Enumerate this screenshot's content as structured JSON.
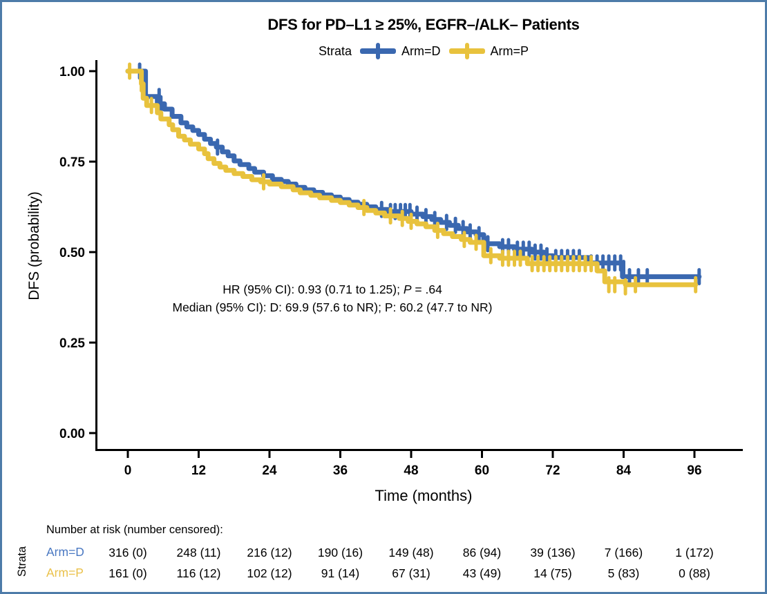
{
  "title": "DFS for PD–L1 ≥ 25%, EGFR–/ALK– Patients",
  "legend": {
    "label": "Strata",
    "items": [
      {
        "label": "Arm=D",
        "color": "#3a68b0"
      },
      {
        "label": "Arm=P",
        "color": "#e8c23d"
      }
    ]
  },
  "annotation": {
    "hr_prefix": "HR (95% CI): 0.93 (0.71 to 1.25); ",
    "hr_p": "P",
    "hr_suffix": " = .64",
    "median_line": "Median (95% CI): D: 69.9 (57.6 to NR); P: 60.2 (47.7 to NR)"
  },
  "chart_data": {
    "type": "line",
    "subtype": "kaplan-meier-step",
    "title": "DFS for PD–L1 ≥ 25%, EGFR–/ALK– Patients",
    "xlabel": "Time (months)",
    "ylabel": "DFS (probability)",
    "xlim": [
      0,
      102
    ],
    "ylim": [
      0,
      1.0
    ],
    "x_ticks": [
      "0",
      "12",
      "24",
      "36",
      "48",
      "60",
      "72",
      "84",
      "96"
    ],
    "x_tick_values": [
      0,
      12,
      24,
      36,
      48,
      60,
      72,
      84,
      96
    ],
    "y_ticks": [
      "1.00",
      "0.75",
      "0.50",
      "0.25",
      "0.00"
    ],
    "y_tick_values": [
      1.0,
      0.75,
      0.5,
      0.25,
      0.0
    ],
    "grid": false,
    "legend_position": "top",
    "series": [
      {
        "name": "Arm=D",
        "color": "#3a68b0",
        "steps": [
          [
            0,
            1
          ],
          [
            3,
            1
          ],
          [
            3,
            0.93
          ],
          [
            5,
            0.93
          ],
          [
            5,
            0.91
          ],
          [
            6.2,
            0.91
          ],
          [
            6.2,
            0.895
          ],
          [
            7.5,
            0.895
          ],
          [
            7.5,
            0.875
          ],
          [
            9,
            0.875
          ],
          [
            9,
            0.857
          ],
          [
            10,
            0.857
          ],
          [
            10,
            0.846
          ],
          [
            11,
            0.846
          ],
          [
            11,
            0.836
          ],
          [
            12,
            0.836
          ],
          [
            12,
            0.825
          ],
          [
            13,
            0.825
          ],
          [
            13,
            0.812
          ],
          [
            14,
            0.812
          ],
          [
            14,
            0.8
          ],
          [
            15,
            0.8
          ],
          [
            15,
            0.79
          ],
          [
            16,
            0.79
          ],
          [
            16,
            0.777
          ],
          [
            17,
            0.777
          ],
          [
            17,
            0.766
          ],
          [
            18,
            0.766
          ],
          [
            18,
            0.752
          ],
          [
            19,
            0.752
          ],
          [
            19,
            0.742
          ],
          [
            20.5,
            0.742
          ],
          [
            20.5,
            0.731
          ],
          [
            21.5,
            0.731
          ],
          [
            21.5,
            0.721
          ],
          [
            23,
            0.721
          ],
          [
            23,
            0.711
          ],
          [
            24.5,
            0.711
          ],
          [
            24.5,
            0.701
          ],
          [
            26,
            0.701
          ],
          [
            26,
            0.695
          ],
          [
            27.2,
            0.695
          ],
          [
            27.2,
            0.688
          ],
          [
            28.5,
            0.688
          ],
          [
            28.5,
            0.679
          ],
          [
            30,
            0.679
          ],
          [
            30,
            0.672
          ],
          [
            31.5,
            0.672
          ],
          [
            31.5,
            0.665
          ],
          [
            33,
            0.665
          ],
          [
            33,
            0.658
          ],
          [
            34.5,
            0.658
          ],
          [
            34.5,
            0.652
          ],
          [
            36,
            0.652
          ],
          [
            36,
            0.645
          ],
          [
            37.5,
            0.645
          ],
          [
            37.5,
            0.638
          ],
          [
            39,
            0.638
          ],
          [
            39,
            0.632
          ],
          [
            40.5,
            0.632
          ],
          [
            40.5,
            0.625
          ],
          [
            42,
            0.625
          ],
          [
            42,
            0.618
          ],
          [
            44,
            0.618
          ],
          [
            44,
            0.612
          ],
          [
            48,
            0.612
          ],
          [
            48,
            0.605
          ],
          [
            50,
            0.605
          ],
          [
            50,
            0.598
          ],
          [
            51.5,
            0.598
          ],
          [
            51.5,
            0.59
          ],
          [
            53,
            0.59
          ],
          [
            53,
            0.582
          ],
          [
            54.5,
            0.582
          ],
          [
            54.5,
            0.574
          ],
          [
            56,
            0.574
          ],
          [
            56,
            0.565
          ],
          [
            57.5,
            0.565
          ],
          [
            57.5,
            0.556
          ],
          [
            59,
            0.556
          ],
          [
            59,
            0.548
          ],
          [
            60.3,
            0.548
          ],
          [
            60.3,
            0.523
          ],
          [
            63,
            0.523
          ],
          [
            63,
            0.515
          ],
          [
            65.5,
            0.515
          ],
          [
            65.5,
            0.508
          ],
          [
            68.5,
            0.508
          ],
          [
            68.5,
            0.5
          ],
          [
            70.5,
            0.5
          ],
          [
            70.5,
            0.49
          ],
          [
            72,
            0.49
          ],
          [
            72,
            0.485
          ],
          [
            78,
            0.485
          ],
          [
            78,
            0.47
          ],
          [
            83.8,
            0.47
          ],
          [
            83.8,
            0.432
          ],
          [
            96.8,
            0.432
          ]
        ],
        "censors": [
          [
            2,
            1
          ],
          [
            5.3,
            0.93
          ],
          [
            5.6,
            0.91
          ],
          [
            15.2,
            0.79
          ],
          [
            43,
            0.618
          ],
          [
            44.5,
            0.612
          ],
          [
            45.3,
            0.612
          ],
          [
            46.2,
            0.612
          ],
          [
            47,
            0.612
          ],
          [
            47.8,
            0.612
          ],
          [
            49,
            0.605
          ],
          [
            50.5,
            0.598
          ],
          [
            52,
            0.59
          ],
          [
            54,
            0.582
          ],
          [
            55.5,
            0.574
          ],
          [
            56.8,
            0.565
          ],
          [
            58,
            0.556
          ],
          [
            59.5,
            0.548
          ],
          [
            61,
            0.523
          ],
          [
            63.5,
            0.515
          ],
          [
            64.5,
            0.515
          ],
          [
            66,
            0.508
          ],
          [
            67,
            0.508
          ],
          [
            68,
            0.508
          ],
          [
            69,
            0.5
          ],
          [
            70,
            0.5
          ],
          [
            71,
            0.49
          ],
          [
            72.5,
            0.485
          ],
          [
            73.5,
            0.485
          ],
          [
            74.5,
            0.485
          ],
          [
            75.5,
            0.485
          ],
          [
            76.5,
            0.485
          ],
          [
            78.5,
            0.47
          ],
          [
            79.5,
            0.47
          ],
          [
            80.5,
            0.47
          ],
          [
            81.5,
            0.47
          ],
          [
            82.5,
            0.47
          ],
          [
            83.5,
            0.47
          ],
          [
            84,
            0.455
          ],
          [
            85,
            0.432
          ],
          [
            86.5,
            0.432
          ],
          [
            88,
            0.432
          ],
          [
            96.8,
            0.432
          ]
        ]
      },
      {
        "name": "Arm=P",
        "color": "#e8c23d",
        "steps": [
          [
            0,
            1
          ],
          [
            2.3,
            1
          ],
          [
            2.3,
            0.965
          ],
          [
            2.6,
            0.965
          ],
          [
            2.6,
            0.925
          ],
          [
            3.2,
            0.925
          ],
          [
            3.2,
            0.905
          ],
          [
            5,
            0.905
          ],
          [
            5,
            0.885
          ],
          [
            5.6,
            0.885
          ],
          [
            5.6,
            0.868
          ],
          [
            7,
            0.868
          ],
          [
            7,
            0.852
          ],
          [
            7.6,
            0.852
          ],
          [
            7.6,
            0.838
          ],
          [
            8.6,
            0.838
          ],
          [
            8.6,
            0.82
          ],
          [
            9.6,
            0.82
          ],
          [
            9.6,
            0.81
          ],
          [
            10.6,
            0.81
          ],
          [
            10.6,
            0.798
          ],
          [
            12,
            0.798
          ],
          [
            12,
            0.785
          ],
          [
            13,
            0.785
          ],
          [
            13,
            0.772
          ],
          [
            13.6,
            0.772
          ],
          [
            13.6,
            0.758
          ],
          [
            14.6,
            0.758
          ],
          [
            14.6,
            0.745
          ],
          [
            15.6,
            0.745
          ],
          [
            15.6,
            0.735
          ],
          [
            16.6,
            0.735
          ],
          [
            16.6,
            0.726
          ],
          [
            18,
            0.726
          ],
          [
            18,
            0.717
          ],
          [
            19.5,
            0.717
          ],
          [
            19.5,
            0.709
          ],
          [
            21,
            0.709
          ],
          [
            21,
            0.7
          ],
          [
            22.5,
            0.7
          ],
          [
            22.5,
            0.694
          ],
          [
            24,
            0.694
          ],
          [
            24,
            0.688
          ],
          [
            26,
            0.688
          ],
          [
            26,
            0.681
          ],
          [
            28,
            0.681
          ],
          [
            28,
            0.672
          ],
          [
            29.2,
            0.672
          ],
          [
            29.2,
            0.664
          ],
          [
            31,
            0.664
          ],
          [
            31,
            0.657
          ],
          [
            32.5,
            0.657
          ],
          [
            32.5,
            0.65
          ],
          [
            34.5,
            0.65
          ],
          [
            34.5,
            0.643
          ],
          [
            36,
            0.643
          ],
          [
            36,
            0.637
          ],
          [
            37.5,
            0.637
          ],
          [
            37.5,
            0.63
          ],
          [
            39,
            0.63
          ],
          [
            39,
            0.623
          ],
          [
            40.5,
            0.623
          ],
          [
            40.5,
            0.615
          ],
          [
            42,
            0.615
          ],
          [
            42,
            0.608
          ],
          [
            43.5,
            0.608
          ],
          [
            43.5,
            0.6
          ],
          [
            46,
            0.6
          ],
          [
            46,
            0.593
          ],
          [
            47.5,
            0.593
          ],
          [
            47.5,
            0.585
          ],
          [
            49,
            0.585
          ],
          [
            49,
            0.578
          ],
          [
            50.5,
            0.578
          ],
          [
            50.5,
            0.57
          ],
          [
            52,
            0.57
          ],
          [
            52,
            0.56
          ],
          [
            53.5,
            0.56
          ],
          [
            53.5,
            0.551
          ],
          [
            55,
            0.551
          ],
          [
            55,
            0.543
          ],
          [
            56.5,
            0.543
          ],
          [
            56.5,
            0.535
          ],
          [
            58,
            0.535
          ],
          [
            58,
            0.527
          ],
          [
            60.3,
            0.527
          ],
          [
            60.3,
            0.49
          ],
          [
            63,
            0.49
          ],
          [
            63,
            0.483
          ],
          [
            67.7,
            0.483
          ],
          [
            67.7,
            0.468
          ],
          [
            79.5,
            0.468
          ],
          [
            79.5,
            0.448
          ],
          [
            80.8,
            0.448
          ],
          [
            80.8,
            0.418
          ],
          [
            84.3,
            0.418
          ],
          [
            84.3,
            0.41
          ],
          [
            96.2,
            0.41
          ]
        ],
        "censors": [
          [
            0.3,
            1
          ],
          [
            2.3,
            0.965
          ],
          [
            4,
            0.905
          ],
          [
            23,
            0.694
          ],
          [
            40,
            0.623
          ],
          [
            44.5,
            0.6
          ],
          [
            46.5,
            0.593
          ],
          [
            48,
            0.585
          ],
          [
            52.5,
            0.56
          ],
          [
            57,
            0.535
          ],
          [
            59,
            0.527
          ],
          [
            61.5,
            0.49
          ],
          [
            63.5,
            0.483
          ],
          [
            64.5,
            0.483
          ],
          [
            65.5,
            0.483
          ],
          [
            66.5,
            0.483
          ],
          [
            68.5,
            0.468
          ],
          [
            69.5,
            0.468
          ],
          [
            70.5,
            0.468
          ],
          [
            71.5,
            0.468
          ],
          [
            72.5,
            0.468
          ],
          [
            73.5,
            0.468
          ],
          [
            74.5,
            0.468
          ],
          [
            75.5,
            0.468
          ],
          [
            76.5,
            0.468
          ],
          [
            77.5,
            0.468
          ],
          [
            78.5,
            0.468
          ],
          [
            81.5,
            0.41
          ],
          [
            82.5,
            0.41
          ],
          [
            84.3,
            0.404
          ],
          [
            86,
            0.41
          ],
          [
            96.2,
            0.41
          ]
        ]
      }
    ],
    "hr_annotation": "HR (95% CI): 0.93 (0.71 to 1.25); P = .64",
    "median_annotation": "Median (95% CI): D: 69.9 (57.6 to NR); P: 60.2 (47.7 to NR)"
  },
  "risk_table": {
    "header": "Number at risk (number censored):",
    "axis_label": "Strata",
    "rows": [
      {
        "label": "Arm=D",
        "color": "#4a78c2",
        "values": [
          "316 (0)",
          "248 (11)",
          "216 (12)",
          "190 (16)",
          "149 (48)",
          "86 (94)",
          "39 (136)",
          "7 (166)",
          "1 (172)"
        ]
      },
      {
        "label": "Arm=P",
        "color": "#eac14a",
        "values": [
          "161 (0)",
          "116 (12)",
          "102 (12)",
          "91 (14)",
          "67 (31)",
          "43 (49)",
          "14 (75)",
          "5 (83)",
          "0 (88)"
        ]
      }
    ]
  }
}
